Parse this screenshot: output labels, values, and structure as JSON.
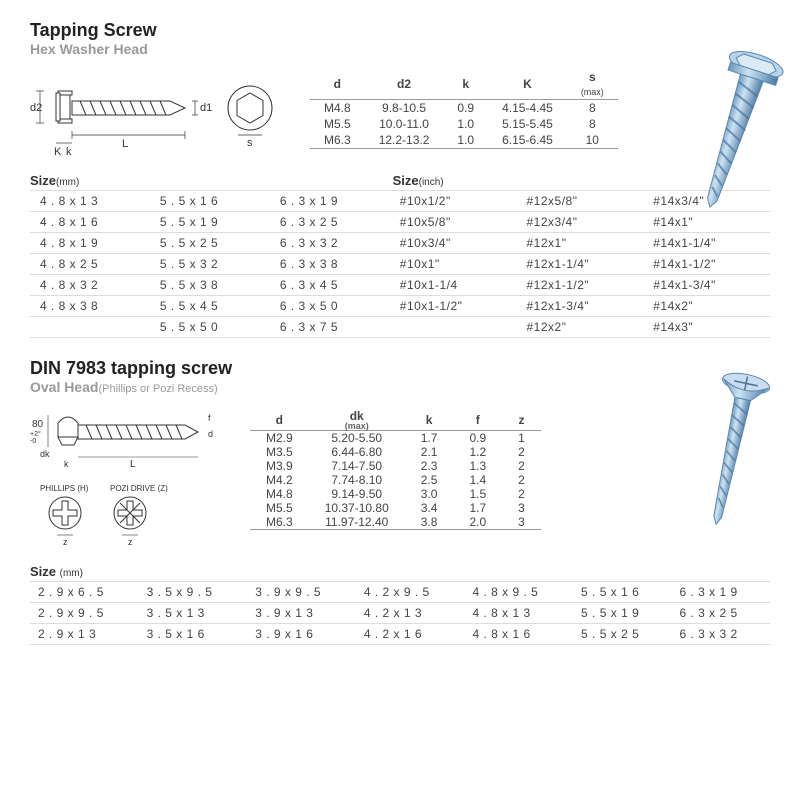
{
  "section1": {
    "title": "Tapping Screw",
    "subtitle": "Hex Washer Head",
    "diagram_labels": {
      "d1": "d1",
      "d2": "d2",
      "L": "L",
      "K": "K",
      "k": "k",
      "s": "s"
    },
    "spec": {
      "headers": [
        "d",
        "d2",
        "k",
        "K",
        "s"
      ],
      "s_note": "(max)",
      "rows": [
        [
          "M4.8",
          "9.8-10.5",
          "0.9",
          "4.15-4.45",
          "8"
        ],
        [
          "M5.5",
          "10.0-11.0",
          "1.0",
          "5.15-5.45",
          "8"
        ],
        [
          "M6.3",
          "12.2-13.2",
          "1.0",
          "6.15-6.45",
          "10"
        ]
      ]
    },
    "size_mm_label": "Size",
    "size_mm_unit": "(mm)",
    "size_inch_label": "Size",
    "size_inch_unit": "(inch)",
    "size_rows": [
      [
        "4 . 8 x 1 3",
        "5 . 5 x 1 6",
        "6 . 3 x 1 9",
        "#10x1/2\"",
        "#12x5/8\"",
        "#14x3/4\""
      ],
      [
        "4 . 8 x 1 6",
        "5 . 5 x 1 9",
        "6 . 3 x 2 5",
        "#10x5/8\"",
        "#12x3/4\"",
        "#14x1\""
      ],
      [
        "4 . 8 x 1 9",
        "5 . 5 x 2 5",
        "6 . 3 x 3 2",
        "#10x3/4\"",
        "#12x1\"",
        "#14x1-1/4\""
      ],
      [
        "4 . 8 x 2 5",
        "5 . 5 x 3 2",
        "6 . 3 x 3 8",
        "#10x1\"",
        "#12x1-1/4\"",
        "#14x1-1/2\""
      ],
      [
        "4 . 8 x 3 2",
        "5 . 5 x 3 8",
        "6 . 3 x 4 5",
        "#10x1-1/4",
        "#12x1-1/2\"",
        "#14x1-3/4\""
      ],
      [
        "4 . 8 x 3 8",
        "5 . 5 x 4 5",
        "6 . 3 x 5 0",
        "#10x1-1/2\"",
        "#12x1-3/4\"",
        "#14x2\""
      ],
      [
        "",
        "5 . 5 x 5 0",
        "6 . 3 x 7 5",
        "",
        "#12x2\"",
        "#14x3\""
      ]
    ]
  },
  "section2": {
    "title": "DIN 7983 tapping screw",
    "subtitle": "Oval Head",
    "subtitle_note": "(Phillips or Pozi Recess)",
    "diag_labels": {
      "angle": "80",
      "angle_tol": "+2°\n-0",
      "dk": "dk",
      "L": "L",
      "k": "k",
      "f": "f",
      "d": "d",
      "phillips": "PHILLIPS (H)",
      "pozi": "POZI DRIVE (Z)",
      "z": "z"
    },
    "spec": {
      "headers": [
        "d",
        "dk",
        "k",
        "f",
        "z"
      ],
      "dk_note": "(max)",
      "rows": [
        [
          "M2.9",
          "5.20-5.50",
          "1.7",
          "0.9",
          "1"
        ],
        [
          "M3.5",
          "6.44-6.80",
          "2.1",
          "1.2",
          "2"
        ],
        [
          "M3.9",
          "7.14-7.50",
          "2.3",
          "1.3",
          "2"
        ],
        [
          "M4.2",
          "7.74-8.10",
          "2.5",
          "1.4",
          "2"
        ],
        [
          "M4.8",
          "9.14-9.50",
          "3.0",
          "1.5",
          "2"
        ],
        [
          "M5.5",
          "10.37-10.80",
          "3.4",
          "1.7",
          "3"
        ],
        [
          "M6.3",
          "11.97-12.40",
          "3.8",
          "2.0",
          "3"
        ]
      ]
    },
    "size_label": "Size",
    "size_unit": "(mm)",
    "size_rows": [
      [
        "2 . 9 x 6 . 5",
        "3 . 5 x 9 . 5",
        "3 . 9 x 9 . 5",
        "4 . 2 x 9 . 5",
        "4 . 8 x 9 . 5",
        "5 . 5 x 1 6",
        "6 . 3 x 1 9"
      ],
      [
        "2 . 9 x 9 . 5",
        "3 . 5 x 1 3",
        "3 . 9 x 1 3",
        "4 . 2 x 1 3",
        "4 . 8 x 1 3",
        "5 . 5 x 1 9",
        "6 . 3 x 2 5"
      ],
      [
        "2 . 9 x 1 3",
        "3 . 5 x 1 6",
        "3 . 9 x 1 6",
        "4 . 2 x 1 6",
        "4 . 8 x 1 6",
        "5 . 5 x 2 5",
        "6 . 3 x 3 2"
      ]
    ]
  },
  "colors": {
    "screw_blue": "#8db8dc",
    "screw_dark": "#5a88b0",
    "text_dark": "#333333",
    "text_grey": "#999999",
    "line": "#999999"
  }
}
